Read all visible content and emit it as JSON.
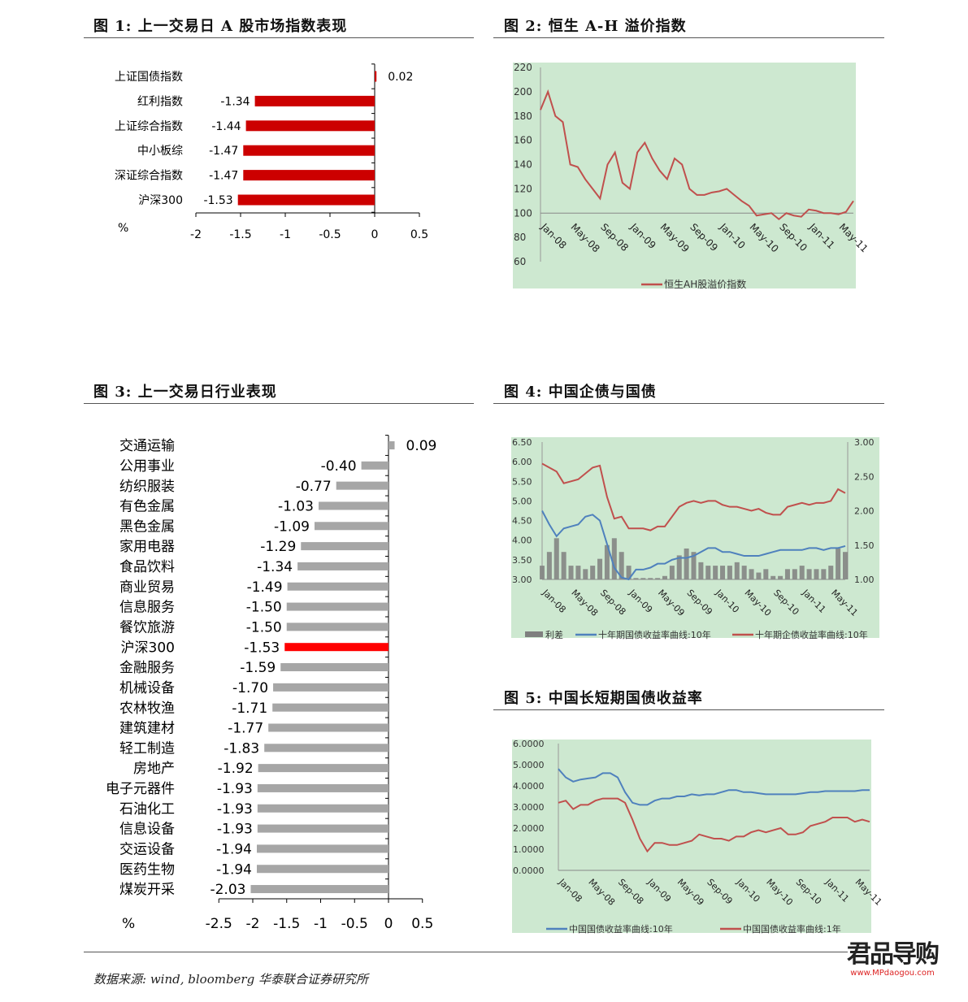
{
  "figures": {
    "fig1": {
      "title": "图 1:  上一交易日 A 股市场指数表现"
    },
    "fig2": {
      "title": "图 2:  恒生 A-H 溢价指数"
    },
    "fig3": {
      "title": "图 3:  上一交易日行业表现"
    },
    "fig4": {
      "title": "图 4:  中国企债与国债"
    },
    "fig5": {
      "title": "图 5:  中国长短期国债收益率"
    }
  },
  "footer": {
    "source": "数据来源: wind,  bloomberg 华泰联合证券研究所",
    "watermark": "君品导购",
    "watermark_url": "www.MPdaogou.com"
  },
  "colors": {
    "bar_red": "#cc0000",
    "bar_gray": "#a6a6a6",
    "highlight_red": "#ff0000",
    "line_red": "#c0504d",
    "line_blue": "#4f81bd",
    "spread_gray": "#7f7f7f",
    "plot_bg": "#cde8d0"
  },
  "chart_data": [
    {
      "id": "fig1",
      "type": "bar",
      "orientation": "horizontal",
      "categories": [
        "上证国债指数",
        "红利指数",
        "上证综合指数",
        "中小板综",
        "深证综合指数",
        "沪深300"
      ],
      "values": [
        0.02,
        -1.34,
        -1.44,
        -1.47,
        -1.47,
        -1.53
      ],
      "value_labels": [
        "0.02",
        "-1.34",
        "-1.44",
        "-1.47",
        "-1.47",
        "-1.53"
      ],
      "xlim": [
        -2,
        0.5
      ],
      "xticks": [
        "-2",
        "-1.5",
        "-1",
        "-0.5",
        "0",
        "0.5"
      ],
      "unit_label": "%",
      "grid": false
    },
    {
      "id": "fig2",
      "type": "line",
      "x_ticks": [
        "Jan-08",
        "May-08",
        "Sep-08",
        "Jan-09",
        "May-09",
        "Sep-09",
        "Jan-10",
        "May-10",
        "Sep-10",
        "Jan-11",
        "May-11"
      ],
      "x_start": "Jan-08",
      "x_step": "month",
      "ylim": [
        60,
        220
      ],
      "yticks": [
        "60",
        "80",
        "100",
        "120",
        "140",
        "160",
        "180",
        "200",
        "220"
      ],
      "reference_line": 100,
      "legend": "bottom",
      "series": [
        {
          "name": "恒生AH股溢价指数",
          "color": "#c0504d",
          "values": [
            185,
            200,
            180,
            175,
            140,
            138,
            128,
            120,
            112,
            140,
            150,
            125,
            120,
            150,
            158,
            145,
            135,
            128,
            145,
            140,
            120,
            115,
            115,
            117,
            118,
            120,
            115,
            110,
            106,
            98,
            99,
            100,
            95,
            100,
            98,
            97,
            103,
            102,
            100,
            100,
            99,
            101,
            110
          ]
        }
      ]
    },
    {
      "id": "fig3",
      "type": "bar",
      "orientation": "horizontal",
      "categories": [
        "交通运输",
        "公用事业",
        "纺织服装",
        "有色金属",
        "黑色金属",
        "家用电器",
        "食品饮料",
        "商业贸易",
        "信息服务",
        "餐饮旅游",
        "沪深300",
        "金融服务",
        "机械设备",
        "农林牧渔",
        "建筑建材",
        "轻工制造",
        "房地产",
        "电子元器件",
        "石油化工",
        "信息设备",
        "交运设备",
        "医药生物",
        "煤炭开采"
      ],
      "values": [
        0.09,
        -0.4,
        -0.77,
        -1.03,
        -1.09,
        -1.29,
        -1.34,
        -1.49,
        -1.5,
        -1.5,
        -1.53,
        -1.59,
        -1.7,
        -1.71,
        -1.77,
        -1.83,
        -1.92,
        -1.93,
        -1.93,
        -1.93,
        -1.94,
        -1.94,
        -2.03
      ],
      "value_labels": [
        "0.09",
        "-0.40",
        "-0.77",
        "-1.03",
        "-1.09",
        "-1.29",
        "-1.34",
        "-1.49",
        "-1.50",
        "-1.50",
        "-1.53",
        "-1.59",
        "-1.70",
        "-1.71",
        "-1.77",
        "-1.83",
        "-1.92",
        "-1.93",
        "-1.93",
        "-1.93",
        "-1.94",
        "-1.94",
        "-2.03"
      ],
      "highlight": "沪深300",
      "xlim": [
        -2.5,
        0.5
      ],
      "xticks": [
        "-2.5",
        "-2",
        "-1.5",
        "-1",
        "-0.5",
        "0",
        "0.5"
      ],
      "unit_label": "%",
      "grid": false
    },
    {
      "id": "fig4",
      "type": "line",
      "x_ticks": [
        "Jan-08",
        "May-08",
        "Sep-08",
        "Jan-09",
        "May-09",
        "Sep-09",
        "Jan-10",
        "May-10",
        "Sep-10",
        "Jan-11",
        "May-11"
      ],
      "x_start": "Jan-08",
      "x_step": "month",
      "ylim": [
        3.0,
        6.5
      ],
      "yticks": [
        "3.00",
        "3.50",
        "4.00",
        "4.50",
        "5.00",
        "5.50",
        "6.00",
        "6.50"
      ],
      "y2lim": [
        1.0,
        3.0
      ],
      "y2ticks": [
        "1.00",
        "1.50",
        "2.00",
        "2.50",
        "3.00"
      ],
      "legend": "bottom",
      "series": [
        {
          "name": "利差",
          "type": "bar",
          "axis": "right",
          "color": "#7f7f7f",
          "values": [
            1.2,
            1.4,
            1.6,
            1.4,
            1.2,
            1.2,
            1.15,
            1.2,
            1.3,
            1.5,
            1.6,
            1.4,
            1.2,
            1.02,
            1.02,
            1.02,
            1.02,
            1.05,
            1.2,
            1.35,
            1.45,
            1.4,
            1.25,
            1.2,
            1.2,
            1.2,
            1.2,
            1.25,
            1.2,
            1.15,
            1.1,
            1.15,
            1.05,
            1.05,
            1.15,
            1.15,
            1.2,
            1.15,
            1.15,
            1.15,
            1.2,
            1.45,
            1.4
          ]
        },
        {
          "name": "十年期国债收益率曲线:10年",
          "type": "line",
          "axis": "left",
          "color": "#4f81bd",
          "values": [
            4.75,
            4.4,
            4.1,
            4.3,
            4.35,
            4.4,
            4.6,
            4.65,
            4.5,
            3.9,
            3.3,
            3.05,
            3.0,
            3.25,
            3.25,
            3.3,
            3.4,
            3.4,
            3.5,
            3.55,
            3.55,
            3.6,
            3.7,
            3.8,
            3.8,
            3.7,
            3.7,
            3.65,
            3.6,
            3.6,
            3.6,
            3.65,
            3.7,
            3.75,
            3.75,
            3.75,
            3.75,
            3.8,
            3.8,
            3.75,
            3.8,
            3.8,
            3.85
          ]
        },
        {
          "name": "十年期企债收益率曲线:10年",
          "type": "line",
          "axis": "left",
          "color": "#c0504d",
          "values": [
            5.95,
            5.85,
            5.75,
            5.45,
            5.5,
            5.55,
            5.7,
            5.85,
            5.9,
            5.1,
            4.55,
            4.6,
            4.3,
            4.3,
            4.3,
            4.25,
            4.35,
            4.35,
            4.6,
            4.85,
            4.95,
            5.0,
            4.95,
            5.0,
            5.0,
            4.9,
            4.85,
            4.85,
            4.8,
            4.75,
            4.8,
            4.7,
            4.65,
            4.65,
            4.85,
            4.9,
            4.95,
            4.9,
            4.95,
            4.95,
            5.0,
            5.3,
            5.2
          ]
        }
      ]
    },
    {
      "id": "fig5",
      "type": "line",
      "x_ticks": [
        "Jan-08",
        "May-08",
        "Sep-08",
        "Jan-09",
        "May-09",
        "Sep-09",
        "Jan-10",
        "May-10",
        "Sep-10",
        "Jan-11",
        "May-11"
      ],
      "x_start": "Jan-08",
      "x_step": "month",
      "ylim": [
        0,
        6
      ],
      "yticks": [
        "0.0000",
        "1.0000",
        "2.0000",
        "3.0000",
        "4.0000",
        "5.0000",
        "6.0000"
      ],
      "legend": "bottom",
      "series": [
        {
          "name": "中国国债收益率曲线:10年",
          "color": "#4f81bd",
          "values": [
            4.8,
            4.4,
            4.2,
            4.3,
            4.35,
            4.4,
            4.6,
            4.6,
            4.4,
            3.7,
            3.2,
            3.1,
            3.1,
            3.3,
            3.4,
            3.4,
            3.5,
            3.5,
            3.6,
            3.55,
            3.6,
            3.6,
            3.7,
            3.8,
            3.8,
            3.7,
            3.7,
            3.65,
            3.6,
            3.6,
            3.6,
            3.6,
            3.6,
            3.65,
            3.7,
            3.7,
            3.75,
            3.75,
            3.75,
            3.75,
            3.75,
            3.8,
            3.8
          ]
        },
        {
          "name": "中国国债收益率曲线:1年",
          "color": "#c0504d",
          "values": [
            3.2,
            3.3,
            2.9,
            3.1,
            3.1,
            3.3,
            3.4,
            3.4,
            3.4,
            3.2,
            2.4,
            1.5,
            0.9,
            1.3,
            1.3,
            1.2,
            1.2,
            1.3,
            1.4,
            1.7,
            1.6,
            1.5,
            1.5,
            1.4,
            1.6,
            1.6,
            1.8,
            1.9,
            1.8,
            1.9,
            2.0,
            1.7,
            1.7,
            1.8,
            2.1,
            2.2,
            2.3,
            2.5,
            2.5,
            2.5,
            2.3,
            2.4,
            2.3
          ]
        }
      ]
    }
  ]
}
